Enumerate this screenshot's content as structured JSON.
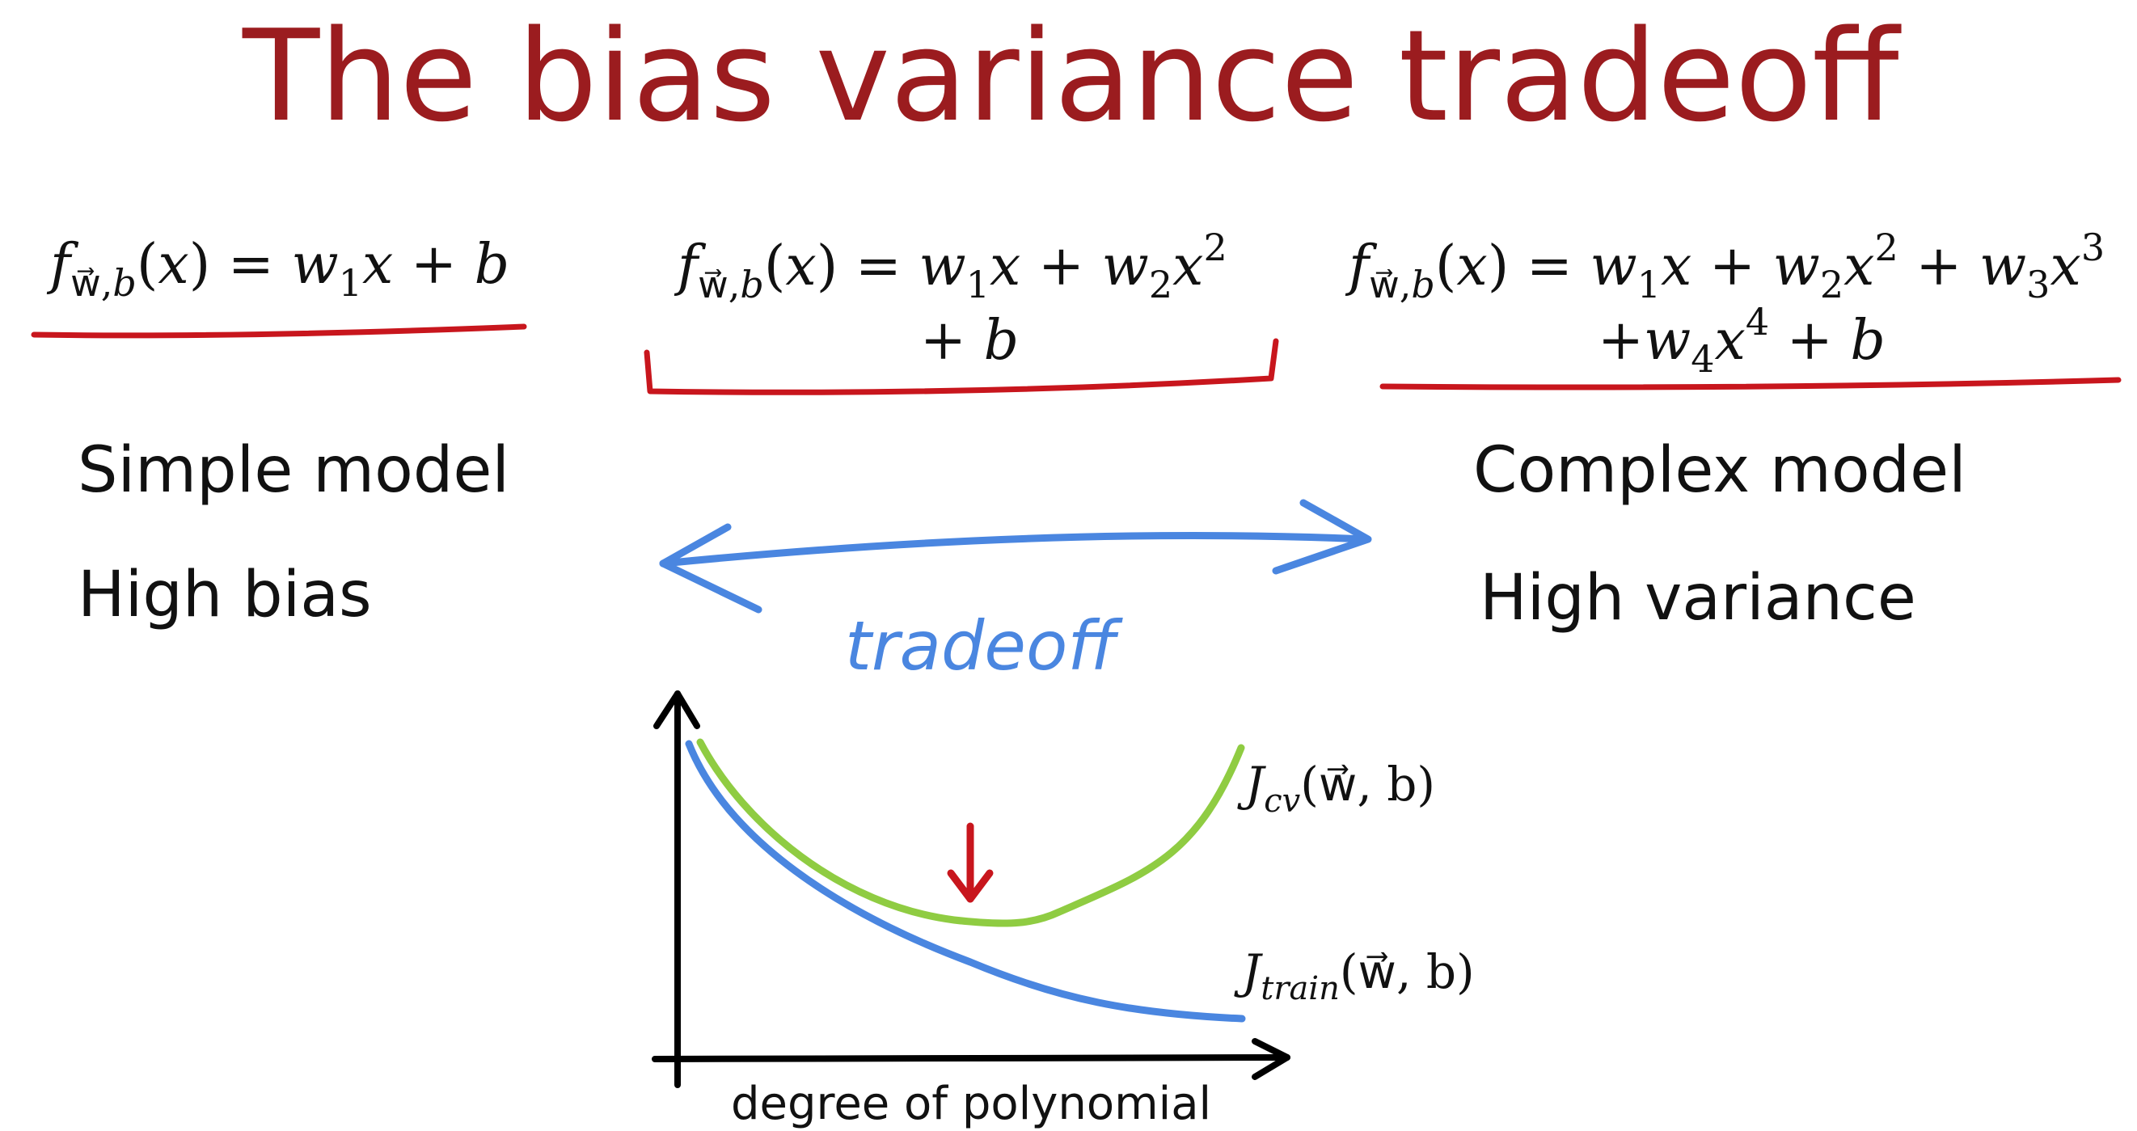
{
  "title": "The bias variance tradeoff",
  "models": {
    "simple": {
      "formula_line1": "f_w,b(x) = w1x + b",
      "label": "Simple model",
      "sublabel": "High bias"
    },
    "middle": {
      "formula_line1": "f_w,b(x) = w1x + w2x^2",
      "formula_line2": "+ b"
    },
    "complex": {
      "formula_line1": "f_w,b(x) = w1x + w2x^2 + w3x^3",
      "formula_line2": "+w4x^4 + b",
      "label": "Complex model",
      "sublabel": "High variance"
    }
  },
  "tradeoff_label": "tradeoff",
  "graph": {
    "xlabel": "degree of polynomial",
    "cv_label_main": "J",
    "cv_label_sub": "cv",
    "cv_label_args": "(w⃗, b)",
    "train_label_main": "J",
    "train_label_sub": "train",
    "train_label_args": "(w⃗, b)"
  },
  "colors": {
    "title": "#9b1c1f",
    "underline": "#c8161d",
    "arrow": "#4a86e0",
    "cv_curve": "#8fcc42",
    "train_curve": "#4a86e0",
    "marker": "#c8161d"
  }
}
